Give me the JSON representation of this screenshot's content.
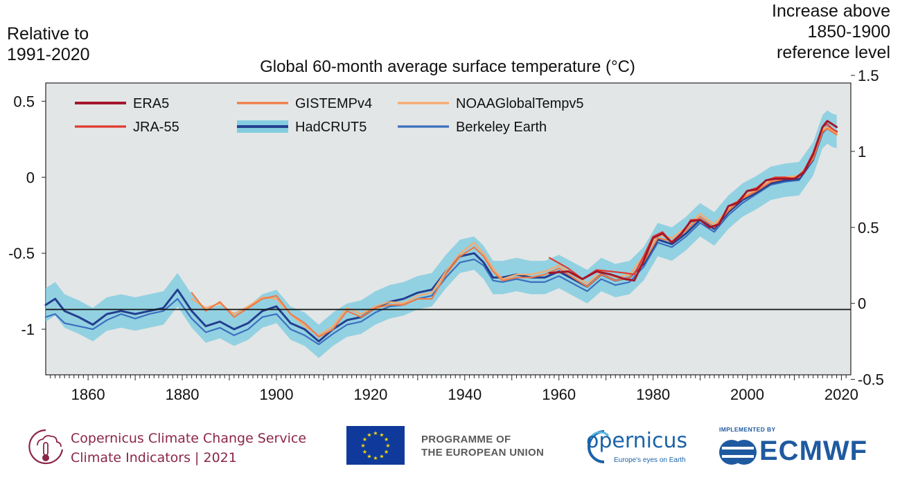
{
  "chart_data": {
    "type": "line",
    "title": "Global 60-month average surface temperature (°C)",
    "left_axis_label": [
      "Relative to",
      "1991-2020"
    ],
    "right_axis_label": [
      "Increase above",
      "1850-1900",
      "reference level"
    ],
    "xlim": [
      1851,
      2022
    ],
    "ylim_left": [
      -1.3,
      0.62
    ],
    "ylim_right": [
      -0.47,
      1.45
    ],
    "x_ticks": [
      1860,
      1880,
      1900,
      1920,
      1940,
      1960,
      1980,
      2000,
      2020
    ],
    "y_ticks_left": [
      {
        "value": 0.5,
        "label": "0.5"
      },
      {
        "value": 0,
        "label": "0"
      },
      {
        "value": -0.5,
        "label": "-0.5"
      },
      {
        "value": -1,
        "label": "-1"
      }
    ],
    "y_ticks_right": [
      {
        "value": 1.5,
        "label": "1.5"
      },
      {
        "value": 1,
        "label": "1"
      },
      {
        "value": 0.5,
        "label": "0.5"
      },
      {
        "value": 0,
        "label": "0"
      },
      {
        "value": -0.5,
        "label": "-0.5"
      }
    ],
    "reference_line": {
      "left_value": -0.87,
      "right_value": 0
    },
    "legend_placement": "top-left",
    "legend": [
      "ERA5",
      "JRA-55",
      "GISTEMPv4",
      "HadCRUT5",
      "NOAAGlobalTempv5",
      "Berkeley Earth"
    ],
    "series": [
      {
        "name": "ERA5",
        "color": "#a3172d",
        "width": 3,
        "x": [
          1958,
          1962,
          1965,
          1968,
          1971,
          1974,
          1976,
          1978,
          1980,
          1982,
          1984,
          1986,
          1988,
          1990,
          1992,
          1994,
          1996,
          1998,
          2000,
          2002,
          2004,
          2006,
          2008,
          2010,
          2012,
          2014,
          2016,
          2017,
          2018,
          2019
        ],
        "values": [
          -0.63,
          -0.62,
          -0.67,
          -0.62,
          -0.64,
          -0.67,
          -0.68,
          -0.55,
          -0.4,
          -0.37,
          -0.43,
          -0.37,
          -0.29,
          -0.28,
          -0.33,
          -0.31,
          -0.19,
          -0.17,
          -0.09,
          -0.08,
          -0.02,
          -0.01,
          -0.01,
          -0.01,
          0.03,
          0.15,
          0.33,
          0.37,
          0.35,
          0.33
        ]
      },
      {
        "name": "JRA-55",
        "color": "#e03a2f",
        "width": 2.2,
        "x": [
          1958,
          1962,
          1965,
          1968,
          1971,
          1974,
          1976,
          1978,
          1980,
          1982,
          1984,
          1986,
          1988,
          1990,
          1992,
          1994,
          1996,
          1998,
          2000,
          2002,
          2004,
          2006,
          2008,
          2010,
          2012,
          2014,
          2016,
          2017,
          2018,
          2019
        ],
        "values": [
          -0.53,
          -0.6,
          -0.67,
          -0.61,
          -0.62,
          -0.63,
          -0.64,
          -0.52,
          -0.39,
          -0.36,
          -0.43,
          -0.38,
          -0.28,
          -0.28,
          -0.33,
          -0.31,
          -0.19,
          -0.16,
          -0.09,
          -0.07,
          -0.02,
          0.0,
          0.0,
          -0.01,
          0.04,
          0.16,
          0.33,
          0.35,
          0.32,
          0.3
        ]
      },
      {
        "name": "GISTEMPv4",
        "color": "#f07a45",
        "width": 2.2,
        "x": [
          1882,
          1885,
          1888,
          1891,
          1894,
          1897,
          1900,
          1903,
          1906,
          1909,
          1912,
          1915,
          1918,
          1921,
          1924,
          1927,
          1930,
          1933,
          1936,
          1939,
          1942,
          1944,
          1946,
          1948,
          1951,
          1954,
          1957,
          1960,
          1963,
          1966,
          1969,
          1972,
          1975,
          1978,
          1981,
          1984,
          1987,
          1990,
          1993,
          1996,
          1999,
          2002,
          2005,
          2008,
          2011,
          2014,
          2016,
          2017,
          2018,
          2019
        ],
        "values": [
          -0.76,
          -0.88,
          -0.82,
          -0.92,
          -0.86,
          -0.8,
          -0.78,
          -0.9,
          -0.96,
          -1.05,
          -1.0,
          -0.88,
          -0.92,
          -0.86,
          -0.84,
          -0.84,
          -0.8,
          -0.8,
          -0.64,
          -0.52,
          -0.46,
          -0.52,
          -0.62,
          -0.68,
          -0.66,
          -0.66,
          -0.64,
          -0.6,
          -0.66,
          -0.72,
          -0.64,
          -0.68,
          -0.66,
          -0.56,
          -0.4,
          -0.42,
          -0.35,
          -0.26,
          -0.33,
          -0.22,
          -0.14,
          -0.09,
          -0.03,
          -0.01,
          0.0,
          0.12,
          0.3,
          0.32,
          0.3,
          0.28
        ]
      },
      {
        "name": "NOAAGlobalTempv5",
        "color": "#f7a96b",
        "width": 2.2,
        "x": [
          1882,
          1885,
          1888,
          1891,
          1894,
          1897,
          1900,
          1903,
          1906,
          1909,
          1912,
          1915,
          1918,
          1921,
          1924,
          1927,
          1930,
          1933,
          1936,
          1939,
          1942,
          1944,
          1946,
          1948,
          1951,
          1954,
          1957,
          1960,
          1963,
          1966,
          1969,
          1972,
          1975,
          1978,
          1981,
          1984,
          1987,
          1990,
          1993,
          1996,
          1999,
          2002,
          2005,
          2008,
          2011,
          2014,
          2016,
          2017,
          2018,
          2019
        ],
        "values": [
          -0.8,
          -0.86,
          -0.83,
          -0.9,
          -0.85,
          -0.79,
          -0.8,
          -0.9,
          -0.98,
          -1.04,
          -0.98,
          -0.86,
          -0.9,
          -0.85,
          -0.82,
          -0.83,
          -0.78,
          -0.76,
          -0.62,
          -0.5,
          -0.43,
          -0.5,
          -0.6,
          -0.67,
          -0.64,
          -0.64,
          -0.62,
          -0.58,
          -0.64,
          -0.7,
          -0.62,
          -0.66,
          -0.64,
          -0.52,
          -0.38,
          -0.4,
          -0.33,
          -0.24,
          -0.31,
          -0.21,
          -0.13,
          -0.08,
          -0.02,
          0.0,
          0.01,
          0.13,
          0.31,
          0.33,
          0.31,
          0.29
        ]
      },
      {
        "name": "HadCRUT5",
        "color": "#243f8f",
        "width": 3,
        "band_color": "#84cde0",
        "band_halfwidth": 0.11,
        "x": [
          1851,
          1853,
          1855,
          1858,
          1861,
          1864,
          1867,
          1870,
          1873,
          1876,
          1879,
          1882,
          1885,
          1888,
          1891,
          1894,
          1897,
          1900,
          1903,
          1906,
          1909,
          1912,
          1915,
          1918,
          1921,
          1924,
          1927,
          1930,
          1933,
          1936,
          1939,
          1942,
          1944,
          1946,
          1948,
          1951,
          1954,
          1957,
          1960,
          1963,
          1966,
          1969,
          1972,
          1975,
          1978,
          1981,
          1984,
          1987,
          1990,
          1993,
          1996,
          1999,
          2002,
          2005,
          2008,
          2011,
          2014,
          2016,
          2017,
          2018,
          2019
        ],
        "values": [
          -0.84,
          -0.8,
          -0.88,
          -0.92,
          -0.97,
          -0.9,
          -0.88,
          -0.9,
          -0.88,
          -0.86,
          -0.74,
          -0.88,
          -0.98,
          -0.95,
          -1.0,
          -0.96,
          -0.88,
          -0.85,
          -0.96,
          -1.0,
          -1.08,
          -1.0,
          -0.94,
          -0.92,
          -0.86,
          -0.82,
          -0.8,
          -0.76,
          -0.74,
          -0.62,
          -0.52,
          -0.5,
          -0.56,
          -0.66,
          -0.66,
          -0.64,
          -0.66,
          -0.66,
          -0.62,
          -0.67,
          -0.72,
          -0.64,
          -0.68,
          -0.66,
          -0.57,
          -0.41,
          -0.44,
          -0.37,
          -0.28,
          -0.34,
          -0.23,
          -0.15,
          -0.1,
          -0.04,
          -0.02,
          -0.01,
          0.12,
          0.3,
          0.33,
          0.31,
          0.3
        ]
      },
      {
        "name": "Berkeley Earth",
        "color": "#3c6fbd",
        "width": 2.2,
        "x": [
          1851,
          1853,
          1855,
          1858,
          1861,
          1864,
          1867,
          1870,
          1873,
          1876,
          1879,
          1882,
          1885,
          1888,
          1891,
          1894,
          1897,
          1900,
          1903,
          1906,
          1909,
          1912,
          1915,
          1918,
          1921,
          1924,
          1927,
          1930,
          1933,
          1936,
          1939,
          1942,
          1944,
          1946,
          1948,
          1951,
          1954,
          1957,
          1960,
          1963,
          1966,
          1969,
          1972,
          1975,
          1978,
          1981,
          1984,
          1987,
          1990,
          1993,
          1996,
          1999,
          2002,
          2005,
          2008,
          2011,
          2014,
          2016,
          2017,
          2018,
          2019
        ],
        "values": [
          -0.92,
          -0.9,
          -0.96,
          -0.98,
          -1.0,
          -0.94,
          -0.9,
          -0.93,
          -0.9,
          -0.88,
          -0.8,
          -0.93,
          -1.02,
          -0.99,
          -1.04,
          -1.0,
          -0.92,
          -0.9,
          -1.0,
          -1.04,
          -1.1,
          -1.03,
          -0.97,
          -0.95,
          -0.89,
          -0.85,
          -0.84,
          -0.8,
          -0.78,
          -0.66,
          -0.56,
          -0.54,
          -0.58,
          -0.68,
          -0.69,
          -0.67,
          -0.69,
          -0.69,
          -0.65,
          -0.7,
          -0.75,
          -0.67,
          -0.71,
          -0.69,
          -0.59,
          -0.43,
          -0.46,
          -0.39,
          -0.3,
          -0.36,
          -0.25,
          -0.17,
          -0.11,
          -0.05,
          -0.03,
          -0.02,
          0.11,
          0.29,
          0.32,
          0.3,
          0.29
        ]
      }
    ]
  },
  "footer": {
    "c3s_line1": "Copernicus Climate Change Service",
    "c3s_line2": "Climate Indicators | 2021",
    "programme_line1": "PROGRAMME OF",
    "programme_line2": "THE EUROPEAN UNION",
    "copernicus_logo_text": "opernicus",
    "copernicus_tagline": "Europe's eyes on Earth",
    "ecmwf_implemented": "IMPLEMENTED BY",
    "ecmwf_name": "ECMWF"
  }
}
